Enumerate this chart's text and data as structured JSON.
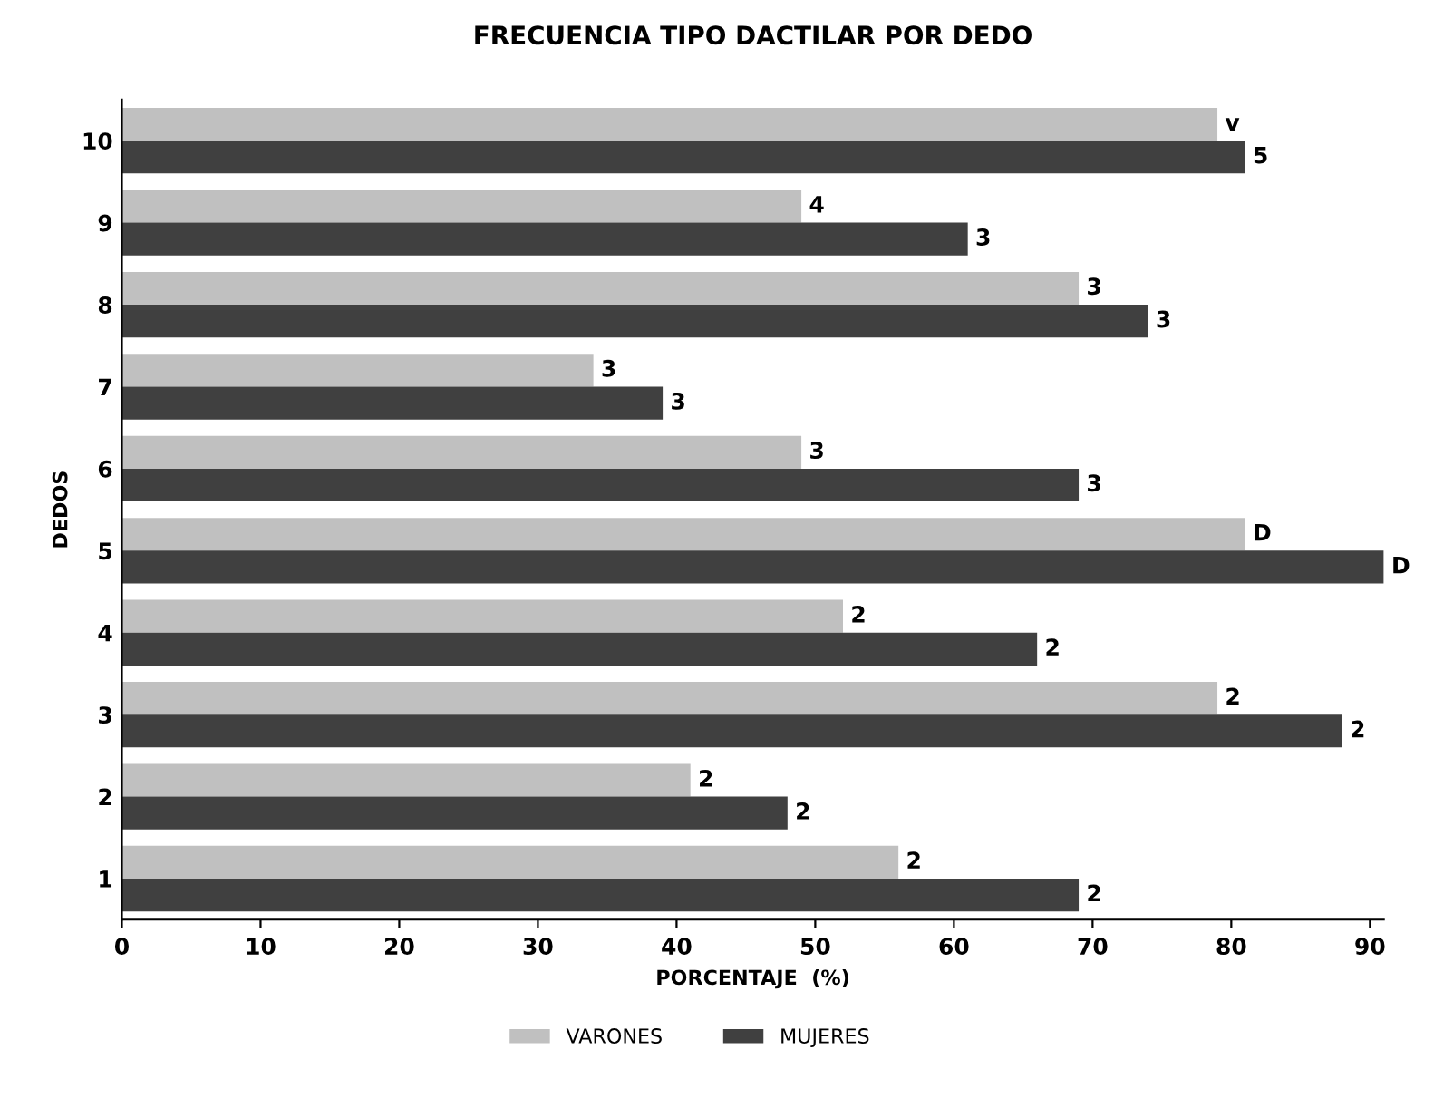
{
  "chart_data": {
    "type": "bar",
    "orientation": "horizontal",
    "title": "FRECUENCIA TIPO DACTILAR POR DEDO",
    "xlabel": "PORCENTAJE  (%)",
    "ylabel": "DEDOS",
    "categories": [
      "10",
      "9",
      "8",
      "7",
      "6",
      "5",
      "4",
      "3",
      "2",
      "1"
    ],
    "series": [
      {
        "name": "VARONES",
        "color": "#c0c0c0",
        "values": [
          79,
          49,
          69,
          34,
          49,
          81,
          52,
          79,
          41,
          56
        ]
      },
      {
        "name": "MUJERES",
        "color": "#404040",
        "values": [
          81,
          61,
          74,
          39,
          69,
          91,
          66,
          88,
          48,
          69
        ]
      }
    ],
    "annotations": [
      {
        "text": "v",
        "x": 79,
        "y": "10"
      },
      {
        "text": "5",
        "x": 81,
        "y": "10"
      },
      {
        "text": "4",
        "x": 49,
        "y": "9"
      },
      {
        "text": "3",
        "x": 61,
        "y": "9"
      },
      {
        "text": "3",
        "x": 69,
        "y": "8"
      },
      {
        "text": "3",
        "x": 74,
        "y": "8"
      },
      {
        "text": "3",
        "x": 34,
        "y": "7"
      },
      {
        "text": "3",
        "x": 39,
        "y": "7"
      },
      {
        "text": "3",
        "x": 49,
        "y": "6"
      },
      {
        "text": "3",
        "x": 69,
        "y": "6"
      },
      {
        "text": "D",
        "x": 81,
        "y": "5"
      },
      {
        "text": "D",
        "x": 91,
        "y": "5"
      },
      {
        "text": "2",
        "x": 52,
        "y": "4"
      },
      {
        "text": "2",
        "x": 66,
        "y": "4"
      },
      {
        "text": "2",
        "x": 79,
        "y": "3"
      },
      {
        "text": "2",
        "x": 88,
        "y": "3"
      },
      {
        "text": "2",
        "x": 41,
        "y": "2"
      },
      {
        "text": "2",
        "x": 48,
        "y": "2"
      },
      {
        "text": "2",
        "x": 56,
        "y": "1"
      },
      {
        "text": "2",
        "x": 69,
        "y": "1"
      }
    ],
    "xlim": [
      0,
      91
    ],
    "xticks": [
      0,
      10,
      20,
      30,
      40,
      50,
      60,
      70,
      80,
      90
    ],
    "grid": false,
    "legend": "bottom"
  }
}
